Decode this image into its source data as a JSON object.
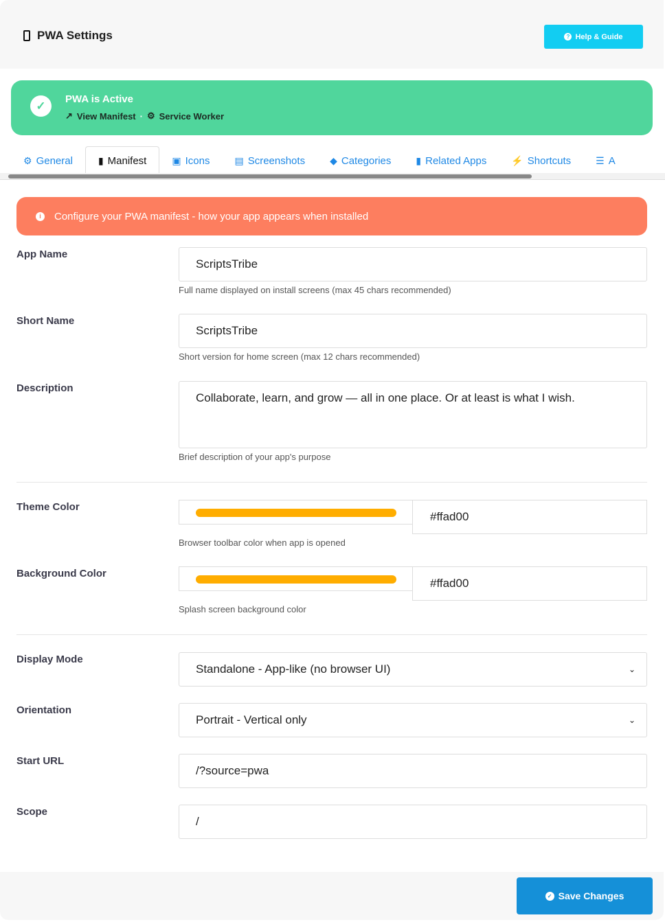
{
  "header": {
    "title": "PWA Settings",
    "icon": "mobile-phone-icon",
    "help_label": "Help & Guide"
  },
  "status": {
    "title": "PWA is Active",
    "view_manifest": "View Manifest",
    "separator": "·",
    "service_worker": "Service Worker"
  },
  "tabs": [
    {
      "label": "General",
      "icon": "gear-icon",
      "glyph": "⚙"
    },
    {
      "label": "Manifest",
      "icon": "file-code-icon",
      "glyph": "▮"
    },
    {
      "label": "Icons",
      "icon": "image-icon",
      "glyph": "▣"
    },
    {
      "label": "Screenshots",
      "icon": "images-icon",
      "glyph": "▤"
    },
    {
      "label": "Categories",
      "icon": "tags-icon",
      "glyph": "◆"
    },
    {
      "label": "Related Apps",
      "icon": "mobile-icon",
      "glyph": "▮"
    },
    {
      "label": "Shortcuts",
      "icon": "bolt-icon",
      "glyph": "⚡"
    },
    {
      "label": "A",
      "icon": "sliders-icon",
      "glyph": "☰"
    }
  ],
  "active_tab": "Manifest",
  "notice": "Configure your PWA manifest - how your app appears when installed",
  "form": {
    "app_name": {
      "label": "App Name",
      "value": "ScriptsTribe",
      "hint": "Full name displayed on install screens (max 45 chars recommended)"
    },
    "short_name": {
      "label": "Short Name",
      "value": "ScriptsTribe",
      "hint": "Short version for home screen (max 12 chars recommended)"
    },
    "description": {
      "label": "Description",
      "value": "Collaborate, learn, and grow — all in one place. Or at least is what I wish.",
      "hint": "Brief description of your app's purpose"
    },
    "theme_color": {
      "label": "Theme Color",
      "value": "#ffad00",
      "hint": "Browser toolbar color when app is opened"
    },
    "background_color": {
      "label": "Background Color",
      "value": "#ffad00",
      "hint": "Splash screen background color"
    },
    "display_mode": {
      "label": "Display Mode",
      "value": "Standalone - App-like (no browser UI)"
    },
    "orientation": {
      "label": "Orientation",
      "value": "Portrait - Vertical only"
    },
    "start_url": {
      "label": "Start URL",
      "value": "/?source=pwa"
    },
    "scope": {
      "label": "Scope",
      "value": "/"
    }
  },
  "footer": {
    "save_label": "Save Changes"
  },
  "colors": {
    "accent": "#1590d8",
    "success": "#50d69c",
    "notice": "#fd7e5f",
    "help": "#12cdf2"
  }
}
